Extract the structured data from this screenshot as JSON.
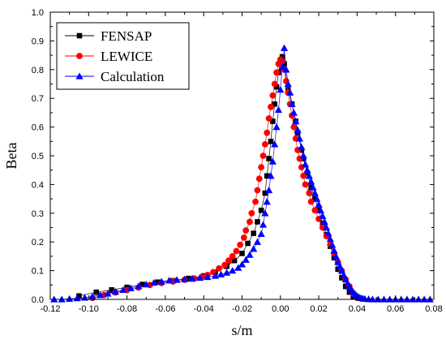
{
  "chart_data": {
    "type": "scatter",
    "title": "",
    "xlabel": "s/m",
    "ylabel": "Beta",
    "xlim": [
      -0.12,
      0.08
    ],
    "ylim": [
      0.0,
      1.0
    ],
    "x_ticks": [
      "-0.12",
      "-0.10",
      "-0.08",
      "-0.06",
      "-0.04",
      "-0.02",
      "0.00",
      "0.02",
      "0.04",
      "0.06",
      "0.08"
    ],
    "y_ticks": [
      "0.0",
      "0.1",
      "0.2",
      "0.3",
      "0.4",
      "0.5",
      "0.6",
      "0.7",
      "0.8",
      "0.9",
      "1.0"
    ],
    "grid": false,
    "legend_position": "top-left",
    "series": [
      {
        "name": "FENSAP",
        "marker": "square",
        "color": "#000000",
        "line": true,
        "points": [
          [
            -0.105,
            0.012
          ],
          [
            -0.096,
            0.025
          ],
          [
            -0.088,
            0.033
          ],
          [
            -0.08,
            0.042
          ],
          [
            -0.072,
            0.052
          ],
          [
            -0.064,
            0.06
          ],
          [
            -0.056,
            0.065
          ],
          [
            -0.048,
            0.073
          ],
          [
            -0.04,
            0.082
          ],
          [
            -0.034,
            0.095
          ],
          [
            -0.028,
            0.115
          ],
          [
            -0.024,
            0.135
          ],
          [
            -0.02,
            0.16
          ],
          [
            -0.017,
            0.195
          ],
          [
            -0.014,
            0.23
          ],
          [
            -0.012,
            0.27
          ],
          [
            -0.01,
            0.31
          ],
          [
            -0.008,
            0.37
          ],
          [
            -0.007,
            0.43
          ],
          [
            -0.006,
            0.49
          ],
          [
            -0.005,
            0.55
          ],
          [
            -0.004,
            0.62
          ],
          [
            -0.003,
            0.68
          ],
          [
            -0.002,
            0.74
          ],
          [
            -0.001,
            0.79
          ],
          [
            0.0,
            0.83
          ],
          [
            0.001,
            0.845
          ],
          [
            0.002,
            0.82
          ],
          [
            0.004,
            0.73
          ],
          [
            0.006,
            0.68
          ],
          [
            0.008,
            0.62
          ],
          [
            0.009,
            0.58
          ],
          [
            0.011,
            0.52
          ],
          [
            0.012,
            0.49
          ],
          [
            0.014,
            0.44
          ],
          [
            0.016,
            0.39
          ],
          [
            0.018,
            0.35
          ],
          [
            0.02,
            0.31
          ],
          [
            0.022,
            0.265
          ],
          [
            0.024,
            0.225
          ],
          [
            0.026,
            0.185
          ],
          [
            0.028,
            0.145
          ],
          [
            0.03,
            0.105
          ],
          [
            0.032,
            0.075
          ],
          [
            0.034,
            0.045
          ],
          [
            0.036,
            0.025
          ],
          [
            0.038,
            0.01
          ]
        ]
      },
      {
        "name": "LEWICE",
        "marker": "circle",
        "color": "#ff0000",
        "line": true,
        "points": [
          [
            -0.098,
            0.005
          ],
          [
            -0.092,
            0.015
          ],
          [
            -0.086,
            0.024
          ],
          [
            -0.08,
            0.032
          ],
          [
            -0.074,
            0.041
          ],
          [
            -0.068,
            0.05
          ],
          [
            -0.062,
            0.057
          ],
          [
            -0.056,
            0.062
          ],
          [
            -0.05,
            0.068
          ],
          [
            -0.045,
            0.073
          ],
          [
            -0.041,
            0.078
          ],
          [
            -0.038,
            0.085
          ],
          [
            -0.035,
            0.095
          ],
          [
            -0.032,
            0.108
          ],
          [
            -0.029,
            0.12
          ],
          [
            -0.027,
            0.135
          ],
          [
            -0.025,
            0.15
          ],
          [
            -0.023,
            0.168
          ],
          [
            -0.021,
            0.19
          ],
          [
            -0.019,
            0.215
          ],
          [
            -0.018,
            0.24
          ],
          [
            -0.016,
            0.27
          ],
          [
            -0.015,
            0.3
          ],
          [
            -0.013,
            0.34
          ],
          [
            -0.012,
            0.38
          ],
          [
            -0.011,
            0.42
          ],
          [
            -0.01,
            0.46
          ],
          [
            -0.009,
            0.5
          ],
          [
            -0.008,
            0.54
          ],
          [
            -0.007,
            0.58
          ],
          [
            -0.006,
            0.63
          ],
          [
            -0.005,
            0.67
          ],
          [
            -0.004,
            0.71
          ],
          [
            -0.003,
            0.75
          ],
          [
            -0.002,
            0.79
          ],
          [
            -0.001,
            0.82
          ],
          [
            0.0,
            0.835
          ],
          [
            0.001,
            0.83
          ],
          [
            0.002,
            0.8
          ],
          [
            0.003,
            0.76
          ],
          [
            0.004,
            0.72
          ],
          [
            0.005,
            0.68
          ],
          [
            0.006,
            0.64
          ],
          [
            0.007,
            0.6
          ],
          [
            0.008,
            0.56
          ],
          [
            0.009,
            0.52
          ],
          [
            0.01,
            0.49
          ],
          [
            0.011,
            0.46
          ],
          [
            0.012,
            0.43
          ],
          [
            0.013,
            0.4
          ],
          [
            0.015,
            0.37
          ],
          [
            0.016,
            0.34
          ],
          [
            0.018,
            0.31
          ],
          [
            0.02,
            0.28
          ],
          [
            0.022,
            0.25
          ],
          [
            0.024,
            0.22
          ],
          [
            0.026,
            0.19
          ],
          [
            0.028,
            0.16
          ],
          [
            0.03,
            0.13
          ],
          [
            0.032,
            0.1
          ],
          [
            0.034,
            0.07
          ],
          [
            0.036,
            0.045
          ],
          [
            0.038,
            0.02
          ],
          [
            0.04,
            0.005
          ]
        ]
      },
      {
        "name": "Calculation",
        "marker": "triangle",
        "color": "#0000ff",
        "line": true,
        "points": [
          [
            -0.118,
            0.0
          ],
          [
            -0.114,
            0.0
          ],
          [
            -0.11,
            0.002
          ],
          [
            -0.106,
            0.004
          ],
          [
            -0.102,
            0.006
          ],
          [
            -0.098,
            0.01
          ],
          [
            -0.094,
            0.015
          ],
          [
            -0.09,
            0.02
          ],
          [
            -0.086,
            0.027
          ],
          [
            -0.082,
            0.033
          ],
          [
            -0.078,
            0.039
          ],
          [
            -0.074,
            0.046
          ],
          [
            -0.07,
            0.052
          ],
          [
            -0.066,
            0.058
          ],
          [
            -0.062,
            0.062
          ],
          [
            -0.058,
            0.066
          ],
          [
            -0.054,
            0.068
          ],
          [
            -0.05,
            0.07
          ],
          [
            -0.046,
            0.072
          ],
          [
            -0.042,
            0.075
          ],
          [
            -0.038,
            0.078
          ],
          [
            -0.034,
            0.082
          ],
          [
            -0.031,
            0.087
          ],
          [
            -0.028,
            0.093
          ],
          [
            -0.025,
            0.1
          ],
          [
            -0.022,
            0.11
          ],
          [
            -0.02,
            0.122
          ],
          [
            -0.018,
            0.138
          ],
          [
            -0.016,
            0.155
          ],
          [
            -0.014,
            0.176
          ],
          [
            -0.012,
            0.2
          ],
          [
            -0.01,
            0.228
          ],
          [
            -0.009,
            0.26
          ],
          [
            -0.008,
            0.3
          ],
          [
            -0.007,
            0.34
          ],
          [
            -0.006,
            0.38
          ],
          [
            -0.005,
            0.43
          ],
          [
            -0.004,
            0.48
          ],
          [
            -0.003,
            0.54
          ],
          [
            -0.002,
            0.6
          ],
          [
            -0.001,
            0.66
          ],
          [
            0.0,
            0.73
          ],
          [
            0.001,
            0.81
          ],
          [
            0.002,
            0.875
          ],
          [
            0.003,
            0.8
          ],
          [
            0.004,
            0.75
          ],
          [
            0.005,
            0.72
          ],
          [
            0.006,
            0.68
          ],
          [
            0.007,
            0.65
          ],
          [
            0.008,
            0.62
          ],
          [
            0.009,
            0.59
          ],
          [
            0.01,
            0.56
          ],
          [
            0.011,
            0.53
          ],
          [
            0.012,
            0.5
          ],
          [
            0.013,
            0.47
          ],
          [
            0.014,
            0.45
          ],
          [
            0.015,
            0.43
          ],
          [
            0.016,
            0.41
          ],
          [
            0.017,
            0.39
          ],
          [
            0.018,
            0.37
          ],
          [
            0.019,
            0.35
          ],
          [
            0.02,
            0.33
          ],
          [
            0.021,
            0.31
          ],
          [
            0.022,
            0.29
          ],
          [
            0.023,
            0.27
          ],
          [
            0.024,
            0.25
          ],
          [
            0.025,
            0.23
          ],
          [
            0.026,
            0.21
          ],
          [
            0.027,
            0.19
          ],
          [
            0.028,
            0.17
          ],
          [
            0.029,
            0.15
          ],
          [
            0.03,
            0.13
          ],
          [
            0.031,
            0.115
          ],
          [
            0.032,
            0.1
          ],
          [
            0.033,
            0.085
          ],
          [
            0.034,
            0.07
          ],
          [
            0.035,
            0.057
          ],
          [
            0.036,
            0.045
          ],
          [
            0.037,
            0.035
          ],
          [
            0.038,
            0.026
          ],
          [
            0.039,
            0.018
          ],
          [
            0.04,
            0.012
          ],
          [
            0.041,
            0.008
          ],
          [
            0.042,
            0.005
          ],
          [
            0.043,
            0.003
          ],
          [
            0.044,
            0.002
          ],
          [
            0.046,
            0.001
          ],
          [
            0.048,
            0.0
          ],
          [
            0.051,
            0.0
          ],
          [
            0.054,
            0.0
          ],
          [
            0.057,
            0.0
          ],
          [
            0.06,
            0.0
          ],
          [
            0.063,
            0.0
          ],
          [
            0.066,
            0.0
          ],
          [
            0.069,
            0.0
          ],
          [
            0.072,
            0.0
          ],
          [
            0.075,
            0.0
          ],
          [
            0.078,
            0.0
          ]
        ]
      }
    ]
  }
}
